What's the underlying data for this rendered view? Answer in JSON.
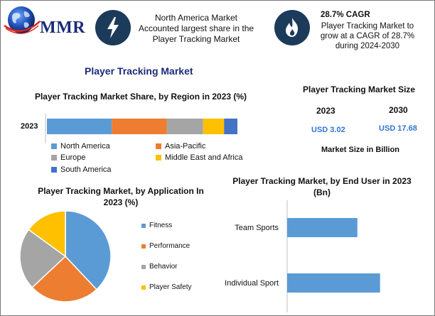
{
  "logo": {
    "text": "MMR"
  },
  "info": {
    "left_text": "North America Market Accounted largest share in the Player Tracking Market",
    "right_title": "28.7% CAGR",
    "right_text": "Player Tracking Market to grow at a CAGR of 28.7% during 2024-2030",
    "left_icon": "lightning-bolt-icon",
    "right_icon": "flame-icon"
  },
  "main_title": "Player Tracking Market",
  "market_size": {
    "title": "Player Tracking Market Size",
    "year1": "2023",
    "year2": "2030",
    "value1": "USD 3.02",
    "value2": "USD 17.68",
    "note": "Market Size in Billion"
  },
  "colors": {
    "blue": "#5b9bd5",
    "orange": "#ed7d31",
    "gray": "#a5a5a5",
    "yellow": "#ffc000",
    "darkblue": "#4472c4",
    "navy": "#1a2b7a",
    "icon_bg": "#1c3b5a"
  },
  "chart_data": [
    {
      "type": "bar",
      "orientation": "horizontal-stacked",
      "title": "Player Tracking Market Share, by Region in 2023 (%)",
      "categories": [
        "2023"
      ],
      "series": [
        {
          "name": "North America",
          "values": [
            34
          ]
        },
        {
          "name": "Asia-Pacific",
          "values": [
            29
          ]
        },
        {
          "name": "Europe",
          "values": [
            19
          ]
        },
        {
          "name": "Middle East and Africa",
          "values": [
            11
          ]
        },
        {
          "name": "South America",
          "values": [
            7
          ]
        }
      ],
      "legend": "bottom"
    },
    {
      "type": "pie",
      "title": "Player Tracking Market, by Application In 2023 (%)",
      "labels": [
        "Fitness",
        "Performance",
        "Behavior",
        "Player Safety"
      ],
      "values": [
        38,
        25,
        22,
        15
      ],
      "legend": "right"
    },
    {
      "type": "bar",
      "orientation": "horizontal",
      "title": "Player Tracking Market, by End User in 2023 (Bn)",
      "categories": [
        "Team Sports",
        "Individual Sport"
      ],
      "values": [
        1.3,
        1.72
      ],
      "xlim": [
        0,
        2.5
      ]
    }
  ]
}
